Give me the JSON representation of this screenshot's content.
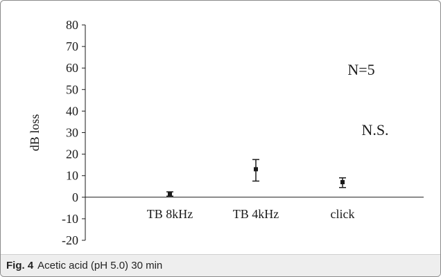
{
  "chart_data": {
    "type": "scatter",
    "categories": [
      "TB 8kHz",
      "TB 4kHz",
      "click"
    ],
    "values": [
      1.5,
      13,
      7
    ],
    "error_low": [
      0.5,
      7.5,
      4.5
    ],
    "error_high": [
      2.5,
      17.5,
      9
    ],
    "ylabel": "dB loss",
    "ylim": [
      -20,
      80
    ],
    "yticks": [
      80,
      70,
      60,
      50,
      40,
      30,
      20,
      10,
      0,
      -10,
      -20
    ],
    "grid": false,
    "annotations": [
      "N=5",
      "N.S."
    ],
    "marker_color": "#1a1a1a"
  },
  "caption": {
    "label": "Fig. 4",
    "text": "Acetic acid (pH 5.0) 30 min"
  }
}
